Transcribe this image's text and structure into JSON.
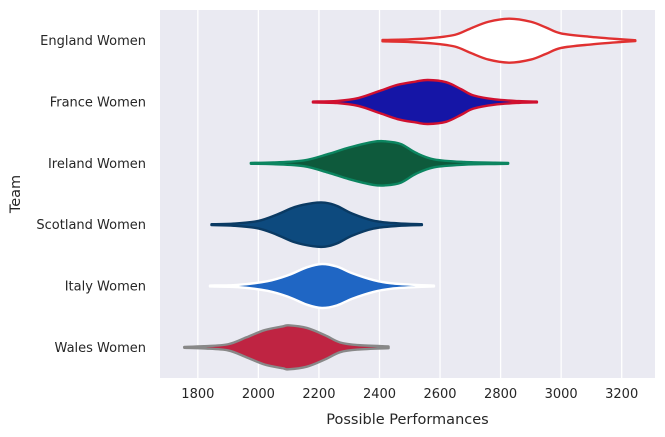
{
  "chart_data": {
    "type": "violin",
    "orientation": "horizontal",
    "title": "",
    "xlabel": "Possible Performances",
    "ylabel": "Team",
    "xlim": [
      1675,
      3310
    ],
    "x_ticks": [
      1800,
      2000,
      2200,
      2400,
      2600,
      2800,
      3000,
      3200
    ],
    "grid": true,
    "background": "#eaeaf2",
    "categories": [
      "England Women",
      "France Women",
      "Ireland Women",
      "Scotland Women",
      "Italy Women",
      "Wales Women"
    ],
    "series": [
      {
        "category": "England Women",
        "fill": "#ffffff",
        "edge": "#e03131",
        "profile": [
          [
            2410,
            0.03
          ],
          [
            2500,
            0.06
          ],
          [
            2580,
            0.13
          ],
          [
            2650,
            0.27
          ],
          [
            2700,
            0.55
          ],
          [
            2760,
            0.86
          ],
          [
            2830,
            1.0
          ],
          [
            2900,
            0.86
          ],
          [
            2950,
            0.6
          ],
          [
            3000,
            0.33
          ],
          [
            3100,
            0.17
          ],
          [
            3200,
            0.06
          ],
          [
            3245,
            0.02
          ]
        ]
      },
      {
        "category": "France Women",
        "fill": "#1515a6",
        "edge": "#d0102f",
        "profile": [
          [
            2180,
            0.02
          ],
          [
            2260,
            0.05
          ],
          [
            2330,
            0.18
          ],
          [
            2400,
            0.5
          ],
          [
            2460,
            0.78
          ],
          [
            2520,
            0.93
          ],
          [
            2560,
            1.0
          ],
          [
            2620,
            0.9
          ],
          [
            2670,
            0.58
          ],
          [
            2710,
            0.3
          ],
          [
            2780,
            0.12
          ],
          [
            2860,
            0.04
          ],
          [
            2920,
            0.02
          ]
        ]
      },
      {
        "category": "Ireland Women",
        "fill": "#0e5a3c",
        "edge": "#0c8560",
        "profile": [
          [
            1975,
            0.02
          ],
          [
            2050,
            0.04
          ],
          [
            2150,
            0.13
          ],
          [
            2230,
            0.42
          ],
          [
            2300,
            0.72
          ],
          [
            2380,
            0.98
          ],
          [
            2420,
            1.0
          ],
          [
            2470,
            0.88
          ],
          [
            2520,
            0.48
          ],
          [
            2580,
            0.18
          ],
          [
            2680,
            0.06
          ],
          [
            2780,
            0.03
          ],
          [
            2825,
            0.02
          ]
        ]
      },
      {
        "category": "Scotland Women",
        "fill": "#0d4a7e",
        "edge": "#0a3a63",
        "profile": [
          [
            1845,
            0.02
          ],
          [
            1920,
            0.05
          ],
          [
            2000,
            0.17
          ],
          [
            2060,
            0.45
          ],
          [
            2120,
            0.8
          ],
          [
            2180,
            0.98
          ],
          [
            2220,
            1.0
          ],
          [
            2260,
            0.85
          ],
          [
            2310,
            0.5
          ],
          [
            2380,
            0.18
          ],
          [
            2460,
            0.06
          ],
          [
            2540,
            0.02
          ]
        ]
      },
      {
        "category": "Italy Women",
        "fill": "#1f66c4",
        "edge": "#ffffff",
        "profile": [
          [
            1840,
            0.02
          ],
          [
            1930,
            0.05
          ],
          [
            2030,
            0.22
          ],
          [
            2100,
            0.5
          ],
          [
            2160,
            0.85
          ],
          [
            2210,
            1.0
          ],
          [
            2260,
            0.88
          ],
          [
            2310,
            0.58
          ],
          [
            2380,
            0.27
          ],
          [
            2440,
            0.12
          ],
          [
            2520,
            0.05
          ],
          [
            2580,
            0.02
          ]
        ]
      },
      {
        "category": "Wales Women",
        "fill": "#bf2442",
        "edge": "#888888",
        "profile": [
          [
            1755,
            0.02
          ],
          [
            1820,
            0.05
          ],
          [
            1900,
            0.14
          ],
          [
            1960,
            0.45
          ],
          [
            2020,
            0.78
          ],
          [
            2080,
            0.95
          ],
          [
            2100,
            1.0
          ],
          [
            2160,
            0.88
          ],
          [
            2220,
            0.55
          ],
          [
            2270,
            0.22
          ],
          [
            2330,
            0.1
          ],
          [
            2430,
            0.04
          ]
        ]
      }
    ]
  }
}
